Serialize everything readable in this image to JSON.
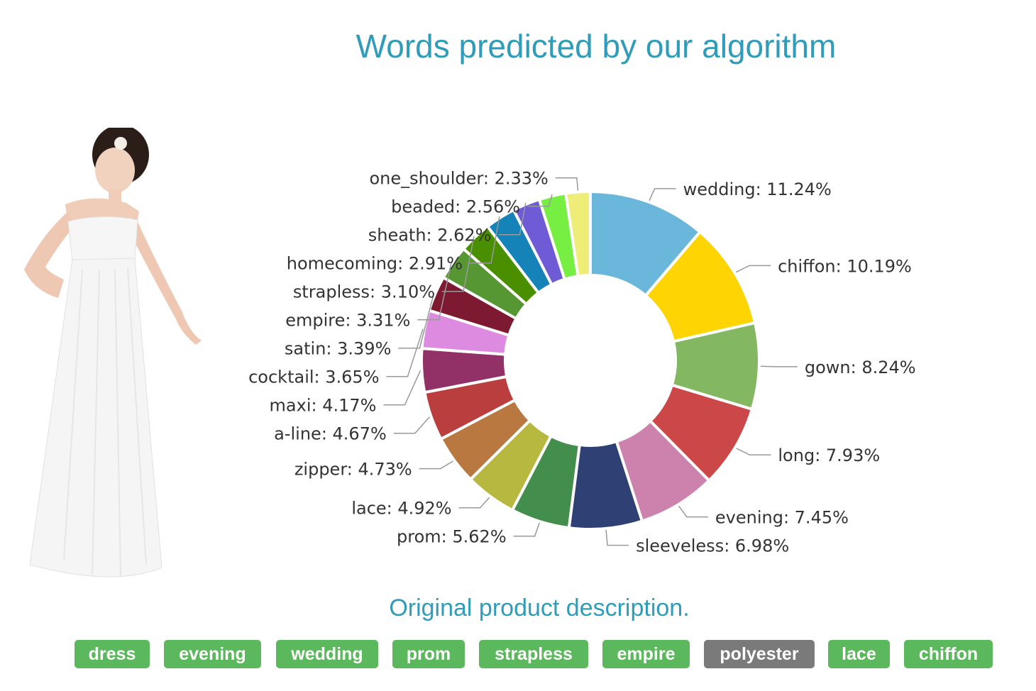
{
  "title": "Words predicted by our algorithm",
  "subtitle": "Original product description.",
  "product_image": {
    "icon": "dress-model-icon"
  },
  "chart_data": {
    "type": "pie",
    "donut": true,
    "title": "Words predicted by our algorithm",
    "label_format": "{label}: {value}%",
    "slices": [
      {
        "label": "wedding",
        "value": 11.24,
        "color": "#6bb7dc"
      },
      {
        "label": "chiffon",
        "value": 10.19,
        "color": "#fed402"
      },
      {
        "label": "gown",
        "value": 8.24,
        "color": "#84b761"
      },
      {
        "label": "long",
        "value": 7.93,
        "color": "#cc4748"
      },
      {
        "label": "evening",
        "value": 7.45,
        "color": "#cd82ad"
      },
      {
        "label": "sleeveless",
        "value": 6.98,
        "color": "#2f4074"
      },
      {
        "label": "prom",
        "value": 5.62,
        "color": "#448e4d"
      },
      {
        "label": "lace",
        "value": 4.92,
        "color": "#b7b83f"
      },
      {
        "label": "zipper",
        "value": 4.73,
        "color": "#b9783f"
      },
      {
        "label": "a-line",
        "value": 4.67,
        "color": "#b93e3d"
      },
      {
        "label": "maxi",
        "value": 4.17,
        "color": "#913167"
      },
      {
        "label": "cocktail",
        "value": 3.65,
        "color": "#dc8be0"
      },
      {
        "label": "satin",
        "value": 3.39,
        "color": "#7d1a31"
      },
      {
        "label": "empire",
        "value": 3.31,
        "color": "#579733"
      },
      {
        "label": "strapless",
        "value": 3.1,
        "color": "#4a8f00"
      },
      {
        "label": "homecoming",
        "value": 2.91,
        "color": "#1583b8"
      },
      {
        "label": "sheath",
        "value": 2.62,
        "color": "#6f5bd6"
      },
      {
        "label": "beaded",
        "value": 2.56,
        "color": "#77ee42"
      },
      {
        "label": "one_shoulder",
        "value": 2.33,
        "color": "#eded78"
      }
    ]
  },
  "tags": [
    {
      "label": "dress",
      "state": "matched"
    },
    {
      "label": "evening",
      "state": "matched"
    },
    {
      "label": "wedding",
      "state": "matched"
    },
    {
      "label": "prom",
      "state": "matched"
    },
    {
      "label": "strapless",
      "state": "matched"
    },
    {
      "label": "empire",
      "state": "matched"
    },
    {
      "label": "polyester",
      "state": "unmatched"
    },
    {
      "label": "lace",
      "state": "matched"
    },
    {
      "label": "chiffon",
      "state": "matched"
    }
  ],
  "colors": {
    "heading": "#2f9cba",
    "tag_matched": "#5cb85c",
    "tag_unmatched": "#7a7a7a"
  }
}
